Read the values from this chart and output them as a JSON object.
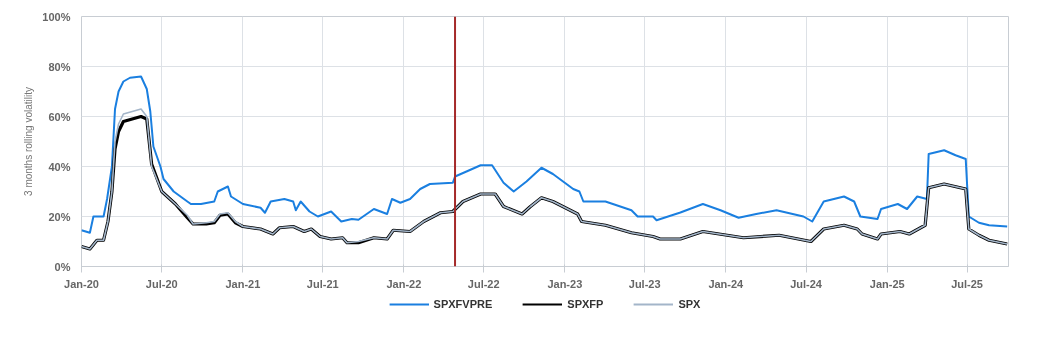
{
  "chart_data": {
    "type": "line",
    "ylabel": "3 months rolling volatility",
    "xlim": [
      "2020-01-01",
      "2025-10-03"
    ],
    "xticks": [
      {
        "value": "2020-01",
        "label": "Jan-20"
      },
      {
        "value": "2020-07",
        "label": "Jul-20"
      },
      {
        "value": "2021-01",
        "label": "Jan-21"
      },
      {
        "value": "2021-07",
        "label": "Jul-21"
      },
      {
        "value": "2022-01",
        "label": "Jan-22"
      },
      {
        "value": "2022-07",
        "label": "Jul-22"
      },
      {
        "value": "2023-01",
        "label": "Jan-23"
      },
      {
        "value": "2023-07",
        "label": "Jul-23"
      },
      {
        "value": "2024-01",
        "label": "Jan-24"
      },
      {
        "value": "2024-07",
        "label": "Jul-24"
      },
      {
        "value": "2025-01",
        "label": "Jan-25"
      },
      {
        "value": "2025-07",
        "label": "Jul-25"
      }
    ],
    "ylim": [
      0,
      100
    ],
    "yticks": [
      {
        "value": 0,
        "label": "0%"
      },
      {
        "value": 20,
        "label": "20%"
      },
      {
        "value": 40,
        "label": "40%"
      },
      {
        "value": 60,
        "label": "60%"
      },
      {
        "value": 80,
        "label": "80%"
      },
      {
        "value": 100,
        "label": "100%"
      }
    ],
    "grid": true,
    "legend": "bottom",
    "line_style": "solid",
    "marker": "none",
    "ref_lines": [
      {
        "axis": "x",
        "value": "2022-04-27",
        "color": "#a52a2a"
      }
    ],
    "series": [
      {
        "name": "SPXFVPRE",
        "color": "#1a7fe0",
        "x": [
          "2020-01-01",
          "2020-01-20",
          "2020-01-28",
          "2020-02-20",
          "2020-02-28",
          "2020-03-10",
          "2020-03-17",
          "2020-03-25",
          "2020-04-05",
          "2020-04-20",
          "2020-05-15",
          "2020-05-28",
          "2020-06-05",
          "2020-06-12",
          "2020-06-28",
          "2020-07-05",
          "2020-07-28",
          "2020-08-28",
          "2020-09-05",
          "2020-09-28",
          "2020-10-28",
          "2020-11-05",
          "2020-11-28",
          "2020-12-05",
          "2021-01-01",
          "2021-02-10",
          "2021-02-20",
          "2021-03-05",
          "2021-04-05",
          "2021-04-25",
          "2021-05-01",
          "2021-05-12",
          "2021-06-01",
          "2021-06-20",
          "2021-07-20",
          "2021-08-12",
          "2021-09-05",
          "2021-09-20",
          "2021-10-25",
          "2021-11-24",
          "2021-12-05",
          "2021-12-24",
          "2022-01-15",
          "2022-02-07",
          "2022-03-01",
          "2022-04-22",
          "2022-04-27",
          "2022-05-23",
          "2022-06-24",
          "2022-07-20",
          "2022-08-15",
          "2022-09-07",
          "2022-10-06",
          "2022-11-09",
          "2022-12-05",
          "2023-01-20",
          "2023-02-03",
          "2023-02-12",
          "2023-04-03",
          "2023-06-01",
          "2023-06-15",
          "2023-07-20",
          "2023-07-28",
          "2023-09-20",
          "2023-11-10",
          "2023-12-20",
          "2024-01-30",
          "2024-03-10",
          "2024-04-25",
          "2024-06-25",
          "2024-07-15",
          "2024-08-10",
          "2024-09-25",
          "2024-10-18",
          "2024-11-01",
          "2024-12-10",
          "2024-12-18",
          "2025-01-25",
          "2025-02-15",
          "2025-03-10",
          "2025-04-01",
          "2025-04-05",
          "2025-05-10",
          "2025-06-05",
          "2025-06-28",
          "2025-07-05",
          "2025-07-28",
          "2025-08-20",
          "2025-09-30"
        ],
        "values": [
          14.5,
          13.5,
          20,
          20,
          27,
          40,
          63,
          70,
          74,
          75.5,
          76,
          71,
          62,
          48,
          40,
          35,
          30,
          26,
          25,
          25,
          26,
          30,
          32,
          28,
          25,
          23.5,
          21.5,
          26,
          27,
          26,
          22.5,
          26,
          22,
          20,
          22,
          18,
          19,
          18.7,
          23,
          21,
          27,
          25.5,
          27,
          31,
          33,
          33.5,
          36,
          38,
          40.5,
          40.5,
          33.5,
          30,
          34,
          39.5,
          37,
          31,
          30,
          26,
          26,
          22.5,
          20,
          20,
          18.5,
          21.6,
          25,
          22.5,
          19.5,
          21,
          22.5,
          20,
          18,
          26,
          28,
          26,
          20,
          19,
          23,
          25,
          23,
          28,
          27,
          45,
          46.5,
          44.5,
          43,
          20,
          17.5,
          16.5,
          16
        ]
      },
      {
        "name": "SPXFP",
        "color": "#000000",
        "x": [
          "2020-01-01",
          "2020-01-20",
          "2020-02-05",
          "2020-02-20",
          "2020-03-01",
          "2020-03-10",
          "2020-03-17",
          "2020-03-25",
          "2020-04-05",
          "2020-05-15",
          "2020-05-28",
          "2020-06-08",
          "2020-07-01",
          "2020-08-01",
          "2020-08-28",
          "2020-09-10",
          "2020-10-10",
          "2020-10-28",
          "2020-11-10",
          "2020-11-28",
          "2020-12-15",
          "2021-01-01",
          "2021-02-10",
          "2021-03-10",
          "2021-03-25",
          "2021-04-25",
          "2021-05-20",
          "2021-06-05",
          "2021-06-25",
          "2021-07-20",
          "2021-08-15",
          "2021-08-25",
          "2021-09-20",
          "2021-10-25",
          "2021-11-24",
          "2021-12-08",
          "2022-01-15",
          "2022-02-15",
          "2022-03-25",
          "2022-04-22",
          "2022-05-15",
          "2022-06-24",
          "2022-07-27",
          "2022-08-15",
          "2022-09-26",
          "2022-10-15",
          "2022-11-09",
          "2022-12-05",
          "2023-01-30",
          "2023-02-08",
          "2023-04-03",
          "2023-06-01",
          "2023-07-20",
          "2023-08-05",
          "2023-09-20",
          "2023-11-10",
          "2024-02-10",
          "2024-05-01",
          "2024-07-12",
          "2024-08-10",
          "2024-09-25",
          "2024-10-25",
          "2024-11-05",
          "2024-12-10",
          "2024-12-18",
          "2025-01-30",
          "2025-02-20",
          "2025-03-28",
          "2025-04-05",
          "2025-05-10",
          "2025-06-28",
          "2025-07-05",
          "2025-07-28",
          "2025-08-20",
          "2025-09-30"
        ],
        "values": [
          8,
          7,
          10.5,
          10.5,
          18,
          30,
          47,
          54,
          58,
          60,
          59,
          41,
          30,
          25,
          19.5,
          17,
          17,
          17.5,
          20.5,
          21,
          17.5,
          16,
          15,
          13,
          15.5,
          16,
          14,
          15,
          12,
          11,
          11.5,
          9.5,
          9.5,
          11.5,
          11,
          14.5,
          14,
          18,
          21.5,
          22,
          26,
          29,
          29,
          24,
          21,
          24,
          27.5,
          26,
          21,
          18,
          16.5,
          13.5,
          12,
          11,
          11,
          14,
          11.5,
          12.5,
          10,
          15,
          16.5,
          15,
          13,
          11,
          13,
          14,
          13,
          16.5,
          31.5,
          33,
          31,
          15,
          12.5,
          10.5,
          9
        ]
      },
      {
        "name": "SPX",
        "color": "#a3b5c9",
        "x": [
          "2020-01-01",
          "2020-01-20",
          "2020-02-05",
          "2020-02-20",
          "2020-03-01",
          "2020-03-10",
          "2020-03-17",
          "2020-03-25",
          "2020-04-05",
          "2020-05-15",
          "2020-05-28",
          "2020-06-08",
          "2020-07-01",
          "2020-08-01",
          "2020-08-28",
          "2020-09-10",
          "2020-10-10",
          "2020-10-28",
          "2020-11-10",
          "2020-11-28",
          "2020-12-15",
          "2021-01-01",
          "2021-02-10",
          "2021-03-10",
          "2021-03-25",
          "2021-04-25",
          "2021-05-20",
          "2021-06-05",
          "2021-06-25",
          "2021-07-20",
          "2021-08-15",
          "2021-08-25",
          "2021-09-20",
          "2021-10-25",
          "2021-11-24",
          "2021-12-08",
          "2022-01-15",
          "2022-02-15",
          "2022-03-25",
          "2022-04-22",
          "2022-05-15",
          "2022-06-24",
          "2022-07-27",
          "2022-08-15",
          "2022-09-26",
          "2022-10-15",
          "2022-11-09",
          "2022-12-05",
          "2023-01-30",
          "2023-02-08",
          "2023-04-03",
          "2023-06-01",
          "2023-07-20",
          "2023-08-05",
          "2023-09-20",
          "2023-11-10",
          "2024-02-10",
          "2024-05-01",
          "2024-07-12",
          "2024-08-10",
          "2024-09-25",
          "2024-10-25",
          "2024-11-05",
          "2024-12-10",
          "2024-12-18",
          "2025-01-30",
          "2025-02-20",
          "2025-03-28",
          "2025-04-05",
          "2025-05-10",
          "2025-06-28",
          "2025-07-05",
          "2025-07-28",
          "2025-08-20",
          "2025-09-30"
        ],
        "values": [
          8,
          7,
          10.5,
          10.5,
          18,
          30,
          50,
          57,
          61,
          63,
          60,
          40,
          30,
          25,
          20.5,
          17,
          17.5,
          18,
          21,
          21.5,
          18,
          16,
          15,
          13,
          15.5,
          16,
          14,
          15,
          12,
          11,
          11.5,
          9.5,
          10,
          11.5,
          11,
          14.5,
          14,
          18,
          21.5,
          22,
          26,
          29,
          29,
          24,
          21,
          24,
          27.5,
          26,
          21,
          18,
          16.5,
          13.5,
          12,
          11,
          11,
          14,
          11.5,
          12.5,
          10,
          15,
          16.5,
          15,
          13,
          11,
          13,
          14,
          13,
          16.5,
          31.5,
          33,
          31,
          15,
          12.5,
          10.5,
          9
        ]
      }
    ]
  }
}
